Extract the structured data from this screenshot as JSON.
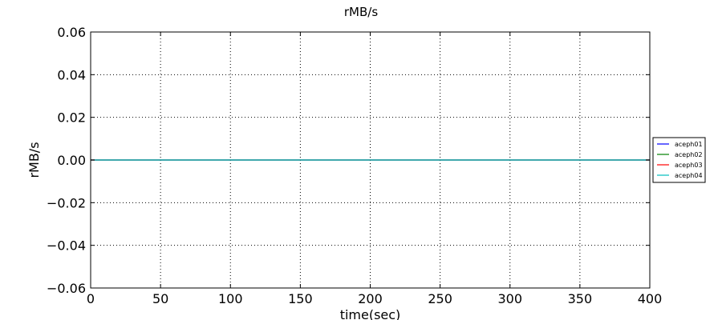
{
  "chart_data": {
    "type": "line",
    "title": "rMB/s",
    "xlabel": "time(sec)",
    "ylabel": "rMB/s",
    "xlim": [
      0,
      400
    ],
    "ylim": [
      -0.06,
      0.06
    ],
    "xticks": [
      0,
      50,
      100,
      150,
      200,
      250,
      300,
      350,
      400
    ],
    "yticks": [
      -0.06,
      -0.04,
      -0.02,
      0.0,
      0.02,
      0.04,
      0.06
    ],
    "xtick_labels": [
      "0",
      "50",
      "100",
      "150",
      "200",
      "250",
      "300",
      "350",
      "400"
    ],
    "ytick_labels": [
      "−0.06",
      "−0.04",
      "−0.02",
      "0.00",
      "0.02",
      "0.04",
      "0.06"
    ],
    "grid": true,
    "legend_position": "right",
    "series": [
      {
        "name": "aceph01",
        "color": "#0000ff",
        "x": [
          0,
          400
        ],
        "y": [
          0,
          0
        ]
      },
      {
        "name": "aceph02",
        "color": "#008000",
        "x": [
          0,
          400
        ],
        "y": [
          0,
          0
        ]
      },
      {
        "name": "aceph03",
        "color": "#ff0000",
        "x": [
          0,
          400
        ],
        "y": [
          0,
          0
        ]
      },
      {
        "name": "aceph04",
        "color": "#00bfbf",
        "x": [
          0,
          400
        ],
        "y": [
          0,
          0
        ]
      }
    ]
  }
}
